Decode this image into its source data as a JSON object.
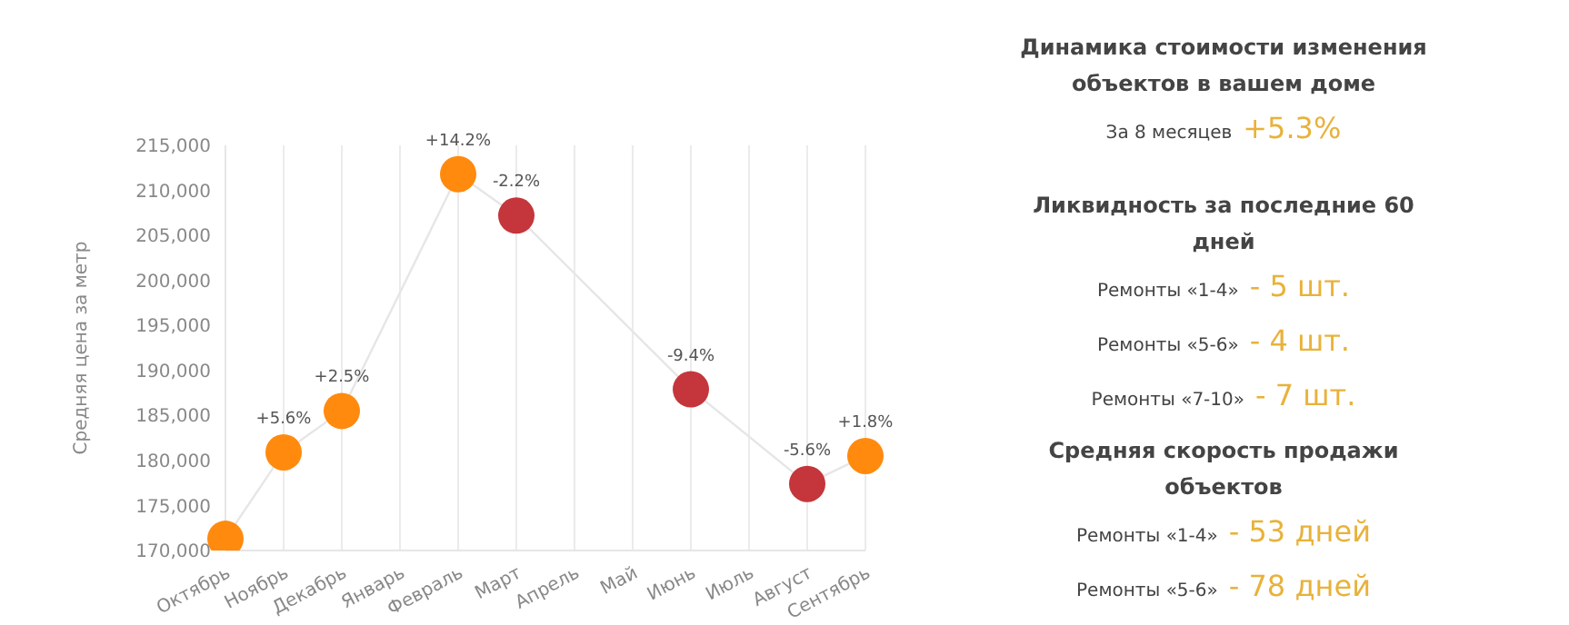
{
  "chart_data": [
    {
      "type": "line",
      "ylabel": "Средняя цена за метр",
      "categories": [
        "Октябрь",
        "Ноябрь",
        "Декабрь",
        "Январь",
        "Февраль",
        "Март",
        "Апрель",
        "Май",
        "Июнь",
        "Июль",
        "Август",
        "Сентябрь"
      ],
      "series": [
        {
          "color": "#e6e6e6",
          "values": [
            171300,
            180900,
            185500,
            null,
            211800,
            207200,
            null,
            null,
            187900,
            null,
            177400,
            180500
          ],
          "colors": [
            "#ff8a0d",
            "#ff8a0d",
            "#ff8a0d",
            null,
            "#ff8a0d",
            "#c4363b",
            null,
            null,
            "#c4363b",
            null,
            "#c4363b",
            "#ff8a0d"
          ],
          "marker": "circle"
        }
      ],
      "annotations": [
        {
          "text": "+5.6%",
          "x": "Ноябрь",
          "y": 180900
        },
        {
          "text": "+2.5%",
          "x": "Декабрь",
          "y": 185500
        },
        {
          "text": "+14.2%",
          "x": "Февраль",
          "y": 211800
        },
        {
          "text": "-2.2%",
          "x": "Март",
          "y": 207200
        },
        {
          "text": "-9.4%",
          "x": "Июнь",
          "y": 187900
        },
        {
          "text": "-5.6%",
          "x": "Август",
          "y": 177400
        },
        {
          "text": "+1.8%",
          "x": "Сентябрь",
          "y": 180500
        }
      ],
      "ylim": [
        170000,
        215000
      ],
      "yticks": [
        {
          "value": 170000,
          "label": "170,000"
        },
        {
          "value": 175000,
          "label": "175,000"
        },
        {
          "value": 180000,
          "label": "180,000"
        },
        {
          "value": 185000,
          "label": "185,000"
        },
        {
          "value": 190000,
          "label": "190,000"
        },
        {
          "value": 195000,
          "label": "195,000"
        },
        {
          "value": 200000,
          "label": "200,000"
        },
        {
          "value": 205000,
          "label": "205,000"
        },
        {
          "value": 210000,
          "label": "210,000"
        },
        {
          "value": 215000,
          "label": "215,000"
        }
      ],
      "grid": "x",
      "legend": false
    },
    {
      "type": "other",
      "title": "Динамика стоимости изменения объектов в вашем доме",
      "annotations": [
        "За 8 месяцев",
        "+5.3%"
      ]
    },
    {
      "type": "other",
      "title": "Ликвидность за последние 60 дней",
      "annotations": [
        "Ремонты «1-4»",
        "- 5 шт.",
        "Ремонты «5-6»",
        "- 4 шт.",
        "Ремонты «7-10»",
        "- 7 шт."
      ]
    },
    {
      "type": "other",
      "title": "Средняя скорость продажи объектов",
      "annotations": [
        "Ремонты «1-4»",
        "- 53 дней",
        "Ремонты «5-6»",
        "- 78 дней"
      ]
    }
  ]
}
